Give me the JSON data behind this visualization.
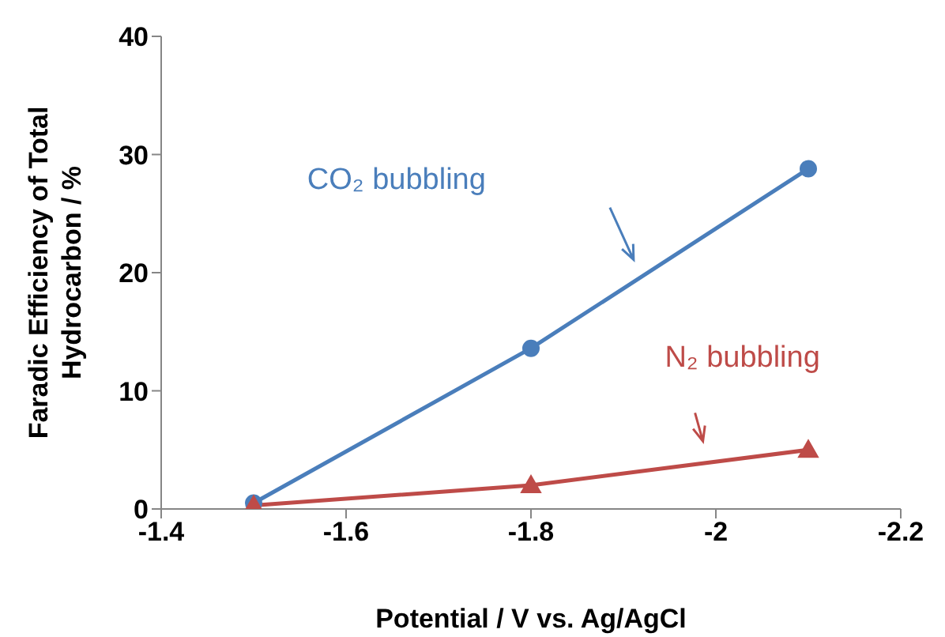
{
  "chart_data": {
    "type": "line",
    "xlabel": "Potential / V vs. Ag/AgCl",
    "ylabel": "Faradic Efficiency of Total Hydrocarbon / %",
    "x": [
      -1.5,
      -1.8,
      -2.1
    ],
    "series": [
      {
        "name": "CO₂ bubbling",
        "color": "#4a7ebb",
        "marker": "circle",
        "values": [
          0.5,
          13.6,
          28.8
        ]
      },
      {
        "name": "N₂ bubbling",
        "color": "#be4b48",
        "marker": "triangle",
        "values": [
          0.3,
          2.0,
          5.0
        ]
      }
    ],
    "xlim": [
      -1.4,
      -2.2
    ],
    "xticks": [
      -1.4,
      -1.6,
      -1.8,
      -2,
      -2.2
    ],
    "ylim": [
      0,
      40
    ],
    "yticks": [
      0,
      10,
      20,
      30,
      40
    ],
    "grid": false,
    "legend": false
  }
}
